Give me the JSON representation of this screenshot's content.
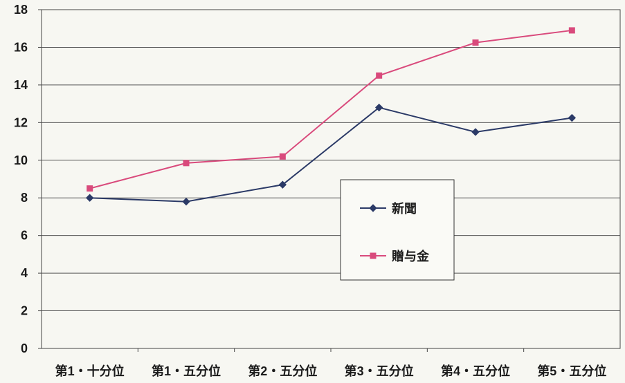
{
  "chart_data": {
    "type": "line",
    "categories": [
      "第1・十分位",
      "第1・五分位",
      "第2・五分位",
      "第3・五分位",
      "第4・五分位",
      "第5・五分位"
    ],
    "series": [
      {
        "name": "新聞",
        "values": [
          8.0,
          7.8,
          8.7,
          12.8,
          11.5,
          12.25
        ],
        "color": "#2b3a67",
        "marker": "diamond"
      },
      {
        "name": "贈与金",
        "values": [
          8.5,
          9.85,
          10.2,
          14.5,
          16.25,
          16.9
        ],
        "color": "#d94a7c",
        "marker": "square"
      }
    ],
    "yticks": [
      0,
      2,
      4,
      6,
      8,
      10,
      12,
      14,
      16,
      18
    ],
    "ylim": [
      0,
      18
    ],
    "grid": true,
    "legend_position": "center-right"
  }
}
